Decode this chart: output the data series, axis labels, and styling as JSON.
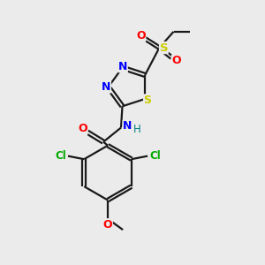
{
  "bg_color": "#ebebeb",
  "bond_color": "#1a1a1a",
  "atom_colors": {
    "N": "#0000ff",
    "O": "#ff0000",
    "S_ring": "#cccc00",
    "S_sulfonyl": "#cccc00",
    "Cl": "#00aa00",
    "H": "#008080"
  },
  "figsize": [
    3.0,
    3.0
  ],
  "dpi": 100,
  "xlim": [
    0,
    10
  ],
  "ylim": [
    0,
    10
  ]
}
